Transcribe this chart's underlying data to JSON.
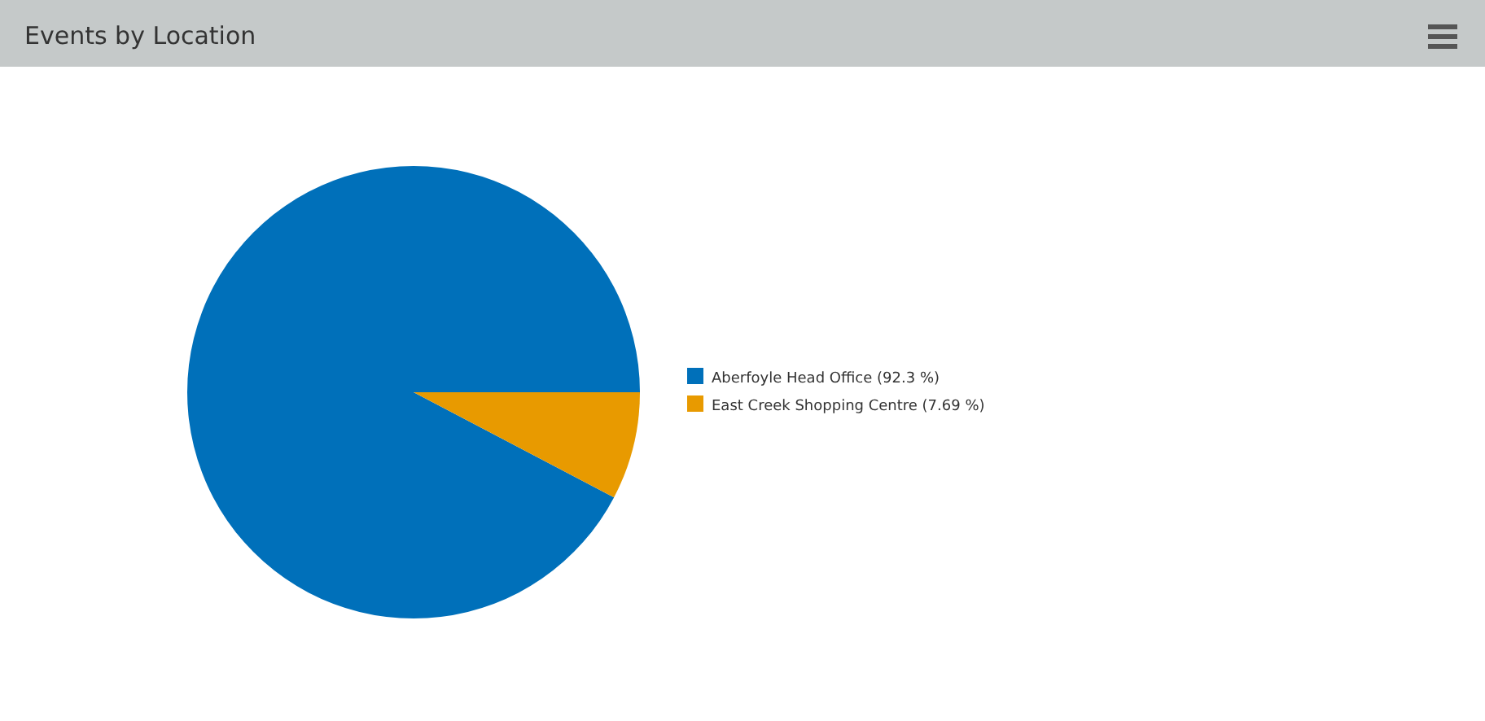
{
  "chart_data": {
    "type": "pie",
    "title": "Events by Location",
    "categories": [
      "Aberfoyle Head Office (92.3 %)",
      "East Creek Shopping Centre (7.69 %)"
    ],
    "values": [
      92.3,
      7.69
    ],
    "colors": [
      "#0070ba",
      "#e89a00"
    ],
    "legend": "right"
  }
}
